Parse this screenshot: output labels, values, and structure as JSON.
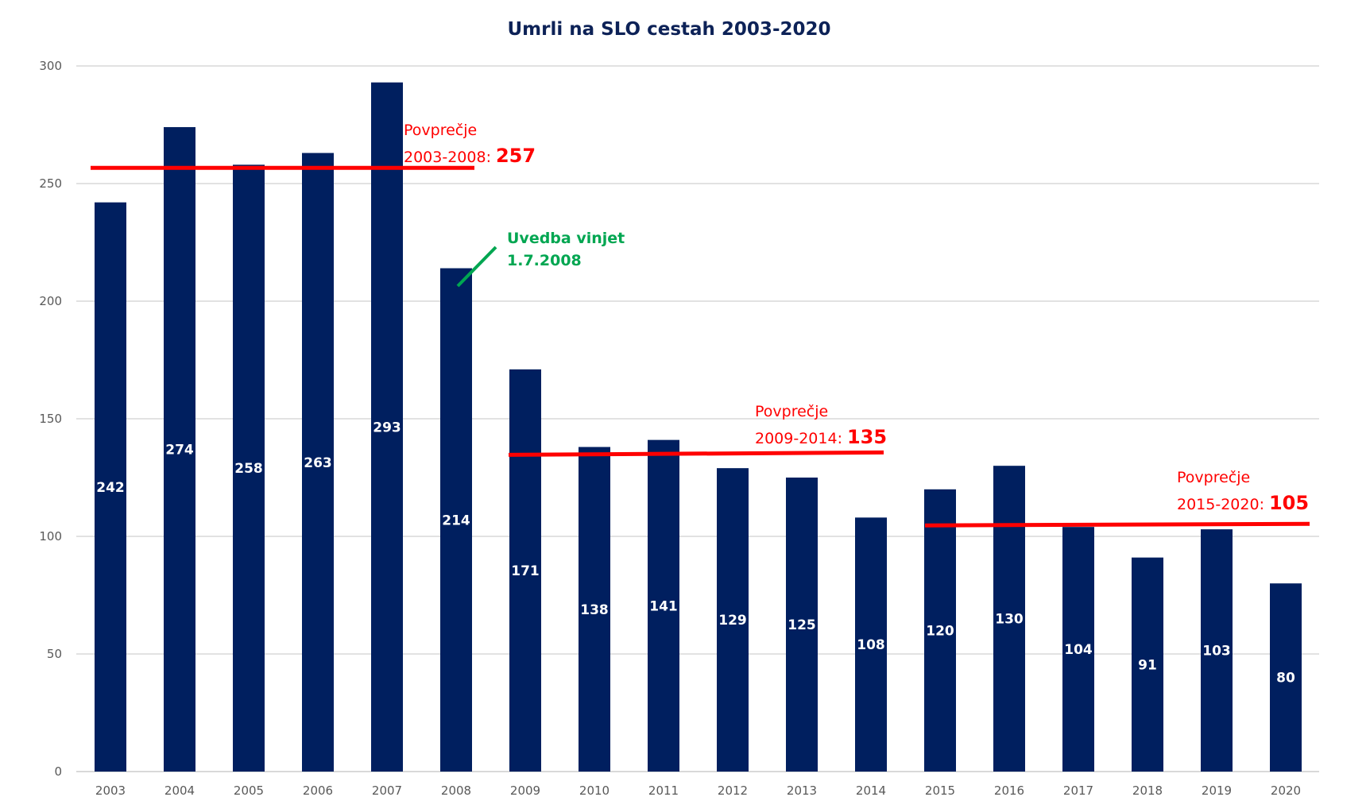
{
  "chart_data": {
    "type": "bar",
    "title": "Umrli na SLO cestah 2003-2020",
    "xlabel": "",
    "ylabel": "",
    "ylim": [
      0,
      300
    ],
    "yticks": [
      0,
      50,
      100,
      150,
      200,
      250,
      300
    ],
    "grid": true,
    "legend": "none",
    "categories": [
      "2003",
      "2004",
      "2005",
      "2006",
      "2007",
      "2008",
      "2009",
      "2010",
      "2011",
      "2012",
      "2013",
      "2014",
      "2015",
      "2016",
      "2017",
      "2018",
      "2019",
      "2020"
    ],
    "values": [
      242,
      274,
      258,
      263,
      293,
      214,
      171,
      138,
      141,
      129,
      125,
      108,
      120,
      130,
      104,
      91,
      103,
      80
    ],
    "bar_color": "#001f5f",
    "averages": [
      {
        "label": "Povprečje",
        "period": "2003-2008:",
        "value": 257,
        "value_text": "257",
        "from": "2003",
        "to": "2008",
        "color": "#ff0000"
      },
      {
        "label": "Povprečje",
        "period": "2009-2014:",
        "value": 135,
        "value_text": "135",
        "from": "2009",
        "to": "2014",
        "color": "#ff0000"
      },
      {
        "label": "Povprečje",
        "period": "2015-2020:",
        "value": 105,
        "value_text": "105",
        "from": "2015",
        "to": "2020",
        "color": "#ff0000"
      }
    ],
    "annotation": {
      "line1": "Uvedba vinjet",
      "line2": "1.7.2008",
      "year": "2008",
      "color": "#00a651"
    }
  }
}
